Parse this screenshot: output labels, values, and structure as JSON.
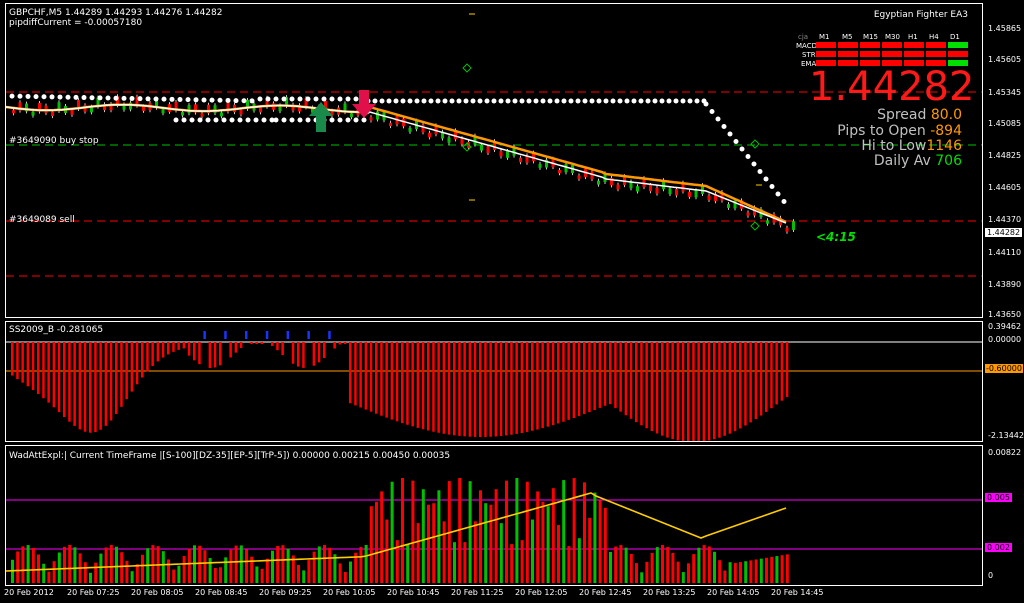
{
  "main": {
    "header": "GBPCHF,M5  1.44289 1.44293 1.44276 1.44282",
    "pipdiff": "pipdiffCurrent = -0.00057180",
    "ea_name": "Egyptian Fighter EA3",
    "order_buy": "#3649090 buy stop",
    "order_sell": "#3649089 sell",
    "big_price": "1.44282",
    "spread_label": "Spread",
    "spread_value": "80.0",
    "pips_open_label": "Pips to Open",
    "pips_open_value": "-894",
    "hi_low_label": "Hi to Low",
    "hi_low_value": "1146",
    "daily_av_label": "Daily Av",
    "daily_av_value": "706",
    "timer": "<4:15",
    "current_price_tag": "1.44282",
    "price_scale": [
      "1.45605",
      "1.45865",
      "1.45345",
      "1.45085",
      "1.44825",
      "1.44605",
      "1.44370",
      "1.44110",
      "1.43890",
      "1.43650"
    ]
  },
  "signal_grid": {
    "corner": "cja",
    "columns": [
      "M1",
      "M5",
      "M15",
      "M30",
      "H1",
      "H4",
      "D1"
    ],
    "rows": [
      {
        "label": "MACD",
        "states": [
          "red",
          "red",
          "red",
          "red",
          "red",
          "red",
          "green"
        ]
      },
      {
        "label": "STR",
        "states": [
          "red",
          "red",
          "red",
          "red",
          "red",
          "red",
          "red"
        ]
      },
      {
        "label": "EMA",
        "states": [
          "red",
          "red",
          "red",
          "red",
          "red",
          "red",
          "green"
        ]
      }
    ],
    "colors": {
      "red": "#ff0000",
      "green": "#00e000"
    }
  },
  "indicator1": {
    "title": "SS2009_B -0.281065",
    "scale": [
      "0.39462",
      "0.00000",
      "-0.60000",
      "-2.13442"
    ]
  },
  "indicator2": {
    "title": "WadAttExpl:| Current TimeFrame |[S-100][DZ-35][EP-5][TrP-5]) 0.00000 0.00215 0.00450 0.00035",
    "scale": [
      "0.00822",
      "0.005",
      "0.002",
      "0"
    ]
  },
  "time_axis": [
    "20 Feb 2012",
    "20 Feb 07:25",
    "20 Feb 08:05",
    "20 Feb 08:45",
    "20 Feb 09:25",
    "20 Feb 10:05",
    "20 Feb 10:45",
    "20 Feb 11:25",
    "20 Feb 12:05",
    "20 Feb 12:45",
    "20 Feb 13:25",
    "20 Feb 14:05",
    "20 Feb 14:45"
  ],
  "colors": {
    "bull": "#00c000",
    "bear": "#ff0000",
    "orange": "#ff9900",
    "yellow": "#ffcc00",
    "magenta": "#ff00ff"
  }
}
